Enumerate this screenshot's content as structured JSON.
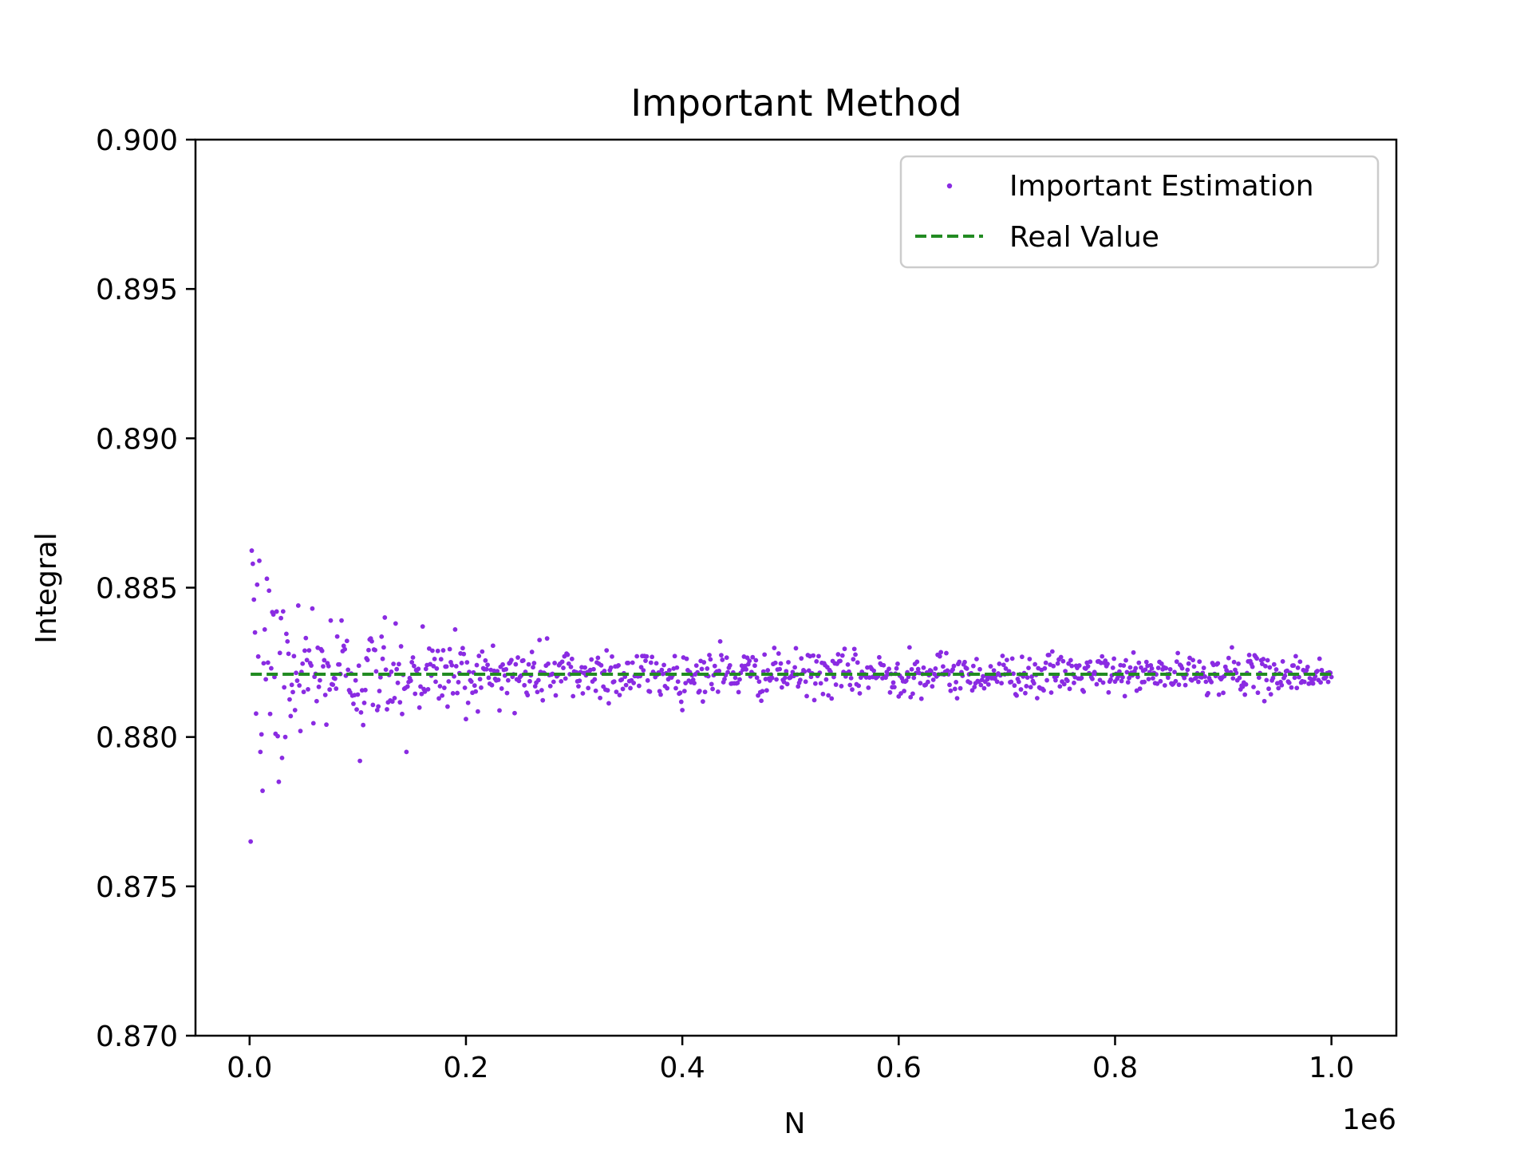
{
  "chart_data": {
    "type": "scatter",
    "title": "Important Method",
    "xlabel": "N",
    "ylabel": "Integral",
    "x_offset_text": "1e6",
    "xlim": [
      -50000,
      1060000
    ],
    "ylim": [
      0.87,
      0.9
    ],
    "x_ticks": [
      0,
      200000,
      400000,
      600000,
      800000,
      1000000
    ],
    "x_tick_labels": [
      "0.0",
      "0.2",
      "0.4",
      "0.6",
      "0.8",
      "1.0"
    ],
    "y_ticks": [
      0.87,
      0.875,
      0.88,
      0.885,
      0.89,
      0.895,
      0.9
    ],
    "y_tick_labels": [
      "0.870",
      "0.875",
      "0.880",
      "0.885",
      "0.890",
      "0.895",
      "0.900"
    ],
    "grid": false,
    "legend": {
      "placement": "top-right",
      "entries": [
        "Important Estimation",
        "Real Value"
      ]
    },
    "series": [
      {
        "name": "Important Estimation",
        "kind": "scatter",
        "color": "#8a2be2",
        "n_points": 1000,
        "x_start": 1000,
        "x_step": 1000,
        "points": [
          [
            1000,
            0.8765
          ],
          [
            3000,
            0.8858
          ],
          [
            4000,
            0.8846
          ],
          [
            5000,
            0.8835
          ],
          [
            7000,
            0.8851
          ],
          [
            9000,
            0.8859
          ],
          [
            10000,
            0.8795
          ],
          [
            12000,
            0.8782
          ],
          [
            14000,
            0.8836
          ],
          [
            16000,
            0.8853
          ],
          [
            18000,
            0.8849
          ],
          [
            20000,
            0.8823
          ],
          [
            25000,
            0.8842
          ],
          [
            27000,
            0.8785
          ],
          [
            30000,
            0.8793
          ],
          [
            33000,
            0.88
          ],
          [
            35000,
            0.8832
          ],
          [
            38000,
            0.8807
          ],
          [
            42000,
            0.8809
          ],
          [
            45000,
            0.8844
          ],
          [
            47000,
            0.8802
          ],
          [
            55000,
            0.8829
          ],
          [
            58000,
            0.8843
          ],
          [
            62000,
            0.8812
          ],
          [
            75000,
            0.8839
          ],
          [
            85000,
            0.8839
          ],
          [
            102000,
            0.8792
          ],
          [
            105000,
            0.8804
          ],
          [
            112000,
            0.8833
          ],
          [
            118000,
            0.8809
          ],
          [
            125000,
            0.884
          ],
          [
            135000,
            0.8838
          ],
          [
            145000,
            0.8795
          ],
          [
            160000,
            0.8837
          ],
          [
            190000,
            0.8836
          ],
          [
            200000,
            0.8806
          ],
          [
            245000,
            0.8808
          ],
          [
            275000,
            0.8833
          ],
          [
            330000,
            0.8829
          ],
          [
            400000,
            0.8809
          ],
          [
            435000,
            0.8832
          ],
          [
            610000,
            0.883
          ],
          [
            728000,
            0.8813
          ],
          [
            908000,
            0.883
          ],
          [
            938000,
            0.8812
          ]
        ],
        "value_mean": 0.8821,
        "spread_profile": [
          {
            "x": 10000,
            "std": 0.0018
          },
          {
            "x": 50000,
            "std": 0.001
          },
          {
            "x": 100000,
            "std": 0.0008
          },
          {
            "x": 200000,
            "std": 0.00055
          },
          {
            "x": 400000,
            "std": 0.0004
          },
          {
            "x": 1000000,
            "std": 0.00028
          }
        ]
      },
      {
        "name": "Real Value",
        "kind": "line",
        "style": "dashed",
        "color": "#228b22",
        "x": [
          1000,
          1000000
        ],
        "y": [
          0.8821,
          0.8821
        ]
      }
    ]
  }
}
